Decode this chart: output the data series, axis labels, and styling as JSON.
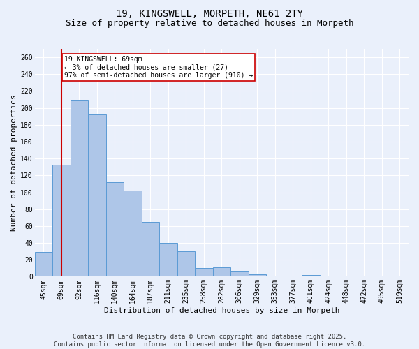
{
  "title": "19, KINGSWELL, MORPETH, NE61 2TY",
  "subtitle": "Size of property relative to detached houses in Morpeth",
  "xlabel": "Distribution of detached houses by size in Morpeth",
  "ylabel": "Number of detached properties",
  "categories": [
    "45sqm",
    "69sqm",
    "92sqm",
    "116sqm",
    "140sqm",
    "164sqm",
    "187sqm",
    "211sqm",
    "235sqm",
    "258sqm",
    "282sqm",
    "306sqm",
    "329sqm",
    "353sqm",
    "377sqm",
    "401sqm",
    "424sqm",
    "448sqm",
    "472sqm",
    "495sqm",
    "519sqm"
  ],
  "bar_values": [
    29,
    133,
    210,
    192,
    112,
    102,
    65,
    40,
    30,
    10,
    11,
    7,
    3,
    0,
    0,
    2,
    0,
    0,
    0,
    0,
    0
  ],
  "highlight_index": 1,
  "bar_color": "#aec6e8",
  "bar_edge_color": "#5b9bd5",
  "highlight_line_color": "#cc0000",
  "annotation_box_color": "#cc0000",
  "annotation_text": "19 KINGSWELL: 69sqm\n← 3% of detached houses are smaller (27)\n97% of semi-detached houses are larger (910) →",
  "ylim": [
    0,
    270
  ],
  "yticks": [
    0,
    20,
    40,
    60,
    80,
    100,
    120,
    140,
    160,
    180,
    200,
    220,
    240,
    260
  ],
  "footer": "Contains HM Land Registry data © Crown copyright and database right 2025.\nContains public sector information licensed under the Open Government Licence v3.0.",
  "background_color": "#eaf0fb",
  "grid_color": "#ffffff",
  "title_fontsize": 10,
  "subtitle_fontsize": 9,
  "axis_fontsize": 8,
  "tick_fontsize": 7,
  "footer_fontsize": 6.5
}
